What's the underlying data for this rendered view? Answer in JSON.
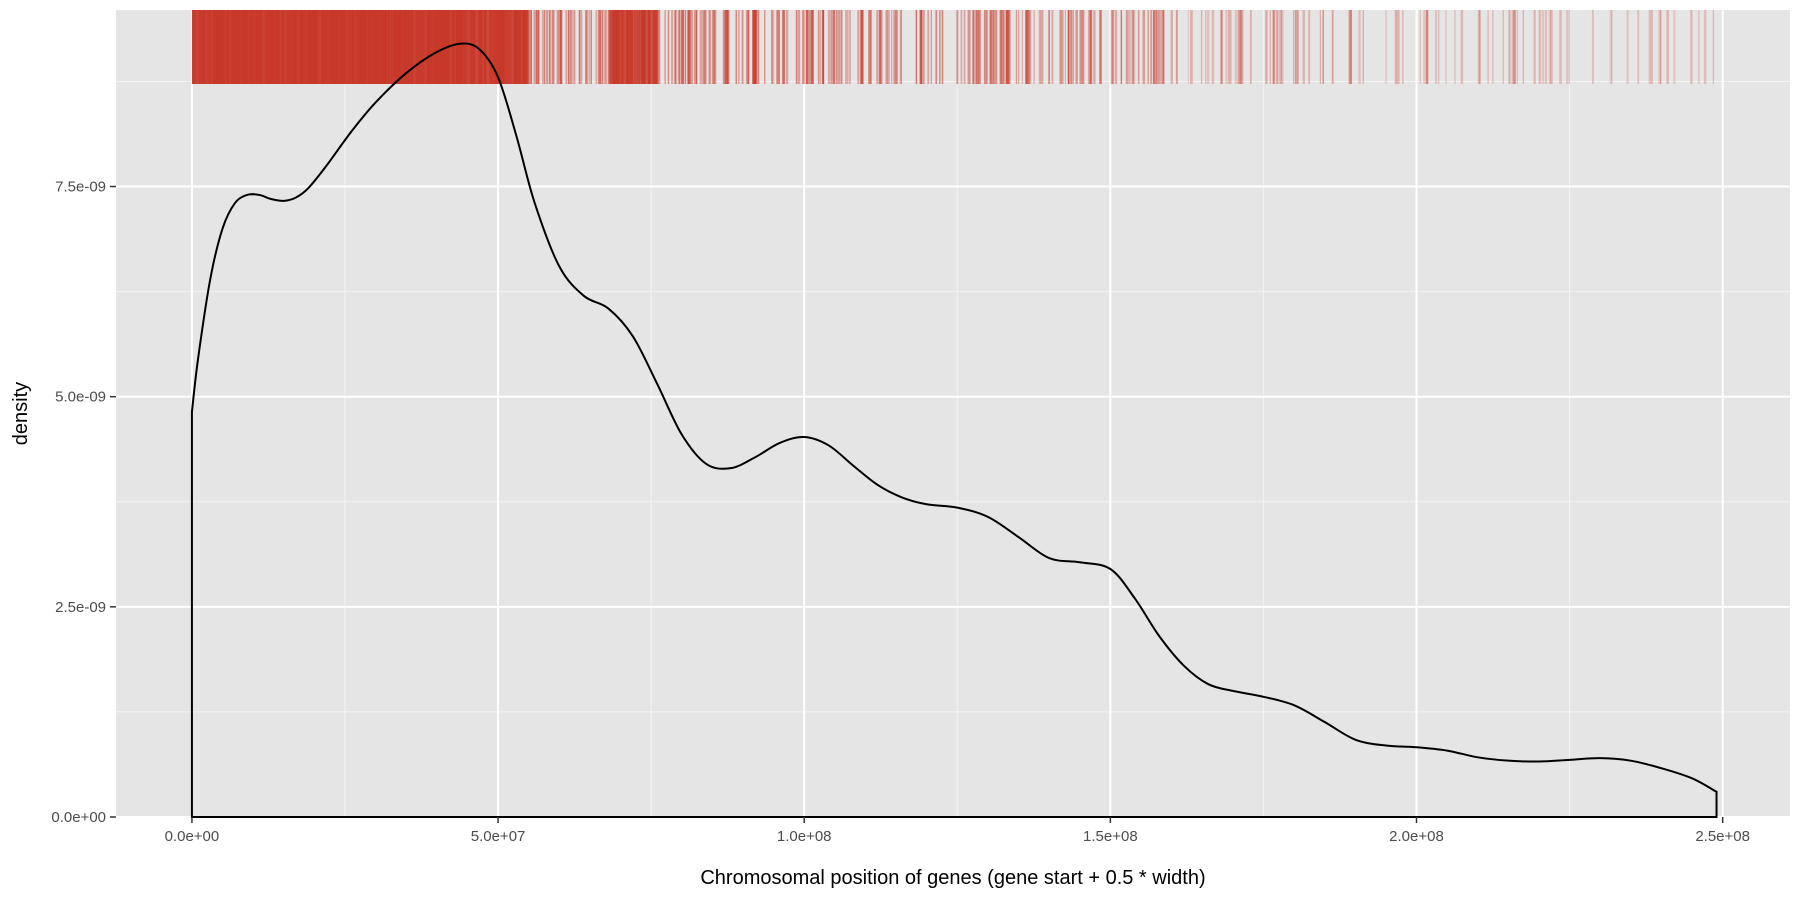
{
  "chart_data": {
    "type": "area",
    "xlabel": "Chromosomal position of genes (gene start + 0.5 * width)",
    "ylabel": "density",
    "xlim": [
      -12400000,
      261000000
    ],
    "ylim": [
      0,
      9.6e-09
    ],
    "x_ticks": [
      0,
      50000000,
      100000000,
      150000000,
      200000000,
      250000000
    ],
    "x_tick_labels": [
      "0.0e+00",
      "5.0e+07",
      "1.0e+08",
      "1.5e+08",
      "2.0e+08",
      "2.5e+08"
    ],
    "y_ticks": [
      0,
      2.5e-09,
      5e-09,
      7.5e-09
    ],
    "y_tick_labels": [
      "0.0e+00",
      "2.5e-09",
      "5.0e-09",
      "7.5e-09"
    ],
    "x_minor_ticks": [
      25000000,
      75000000,
      125000000,
      175000000,
      225000000
    ],
    "y_minor_ticks": [
      1.25e-09,
      3.75e-09,
      6.25e-09,
      8.75e-09
    ],
    "grid": true,
    "colors": {
      "panel_background": "#e5e5e5",
      "grid_line": "#ffffff",
      "density_line": "#000000",
      "rug": "#c8392a"
    },
    "series": [
      {
        "type": "density",
        "x": [
          0,
          1000000,
          3000000,
          5000000,
          7000000,
          9000000,
          11000000,
          13000000,
          15000000,
          17000000,
          19000000,
          22000000,
          26000000,
          30000000,
          35000000,
          40000000,
          44000000,
          47000000,
          50000000,
          53000000,
          56000000,
          60000000,
          64000000,
          68000000,
          72000000,
          76000000,
          80000000,
          84000000,
          88000000,
          92000000,
          96000000,
          100000000,
          104000000,
          108000000,
          112000000,
          116000000,
          120000000,
          125000000,
          130000000,
          135000000,
          140000000,
          145000000,
          150000000,
          154000000,
          158000000,
          162000000,
          166000000,
          170000000,
          175000000,
          180000000,
          185000000,
          190000000,
          195000000,
          200000000,
          205000000,
          210000000,
          215000000,
          220000000,
          225000000,
          230000000,
          235000000,
          240000000,
          245000000,
          249000000
        ],
        "y": [
          4.82e-09,
          5.45e-09,
          6.4e-09,
          7e-09,
          7.3e-09,
          7.4e-09,
          7.4e-09,
          7.35e-09,
          7.33e-09,
          7.37e-09,
          7.48e-09,
          7.75e-09,
          8.15e-09,
          8.5e-09,
          8.85e-09,
          9.1e-09,
          9.2e-09,
          9.13e-09,
          8.8e-09,
          8.1e-09,
          7.3e-09,
          6.55e-09,
          6.2e-09,
          6.05e-09,
          5.72e-09,
          5.15e-09,
          4.55e-09,
          4.2e-09,
          4.15e-09,
          4.28e-09,
          4.45e-09,
          4.52e-09,
          4.42e-09,
          4.18e-09,
          3.95e-09,
          3.8e-09,
          3.72e-09,
          3.68e-09,
          3.57e-09,
          3.33e-09,
          3.08e-09,
          3.03e-09,
          2.95e-09,
          2.6e-09,
          2.15e-09,
          1.8e-09,
          1.58e-09,
          1.5e-09,
          1.43e-09,
          1.33e-09,
          1.13e-09,
          9.2e-10,
          8.5e-10,
          8.3e-10,
          7.9e-10,
          7.1e-10,
          6.7e-10,
          6.6e-10,
          6.8e-10,
          7e-10,
          6.7e-10,
          5.8e-10,
          4.6e-10,
          3e-10
        ]
      }
    ],
    "rug": {
      "orientation": "top",
      "segments": [
        {
          "x0": 0,
          "x1": 2000000,
          "opacity": 0.95,
          "count": 6
        },
        {
          "x0": 2000000,
          "x1": 10000000,
          "opacity": 0.95,
          "count": 60
        },
        {
          "x0": 10000000,
          "x1": 20000000,
          "opacity": 0.95,
          "count": 70
        },
        {
          "x0": 20000000,
          "x1": 30000000,
          "opacity": 0.95,
          "count": 75
        },
        {
          "x0": 30000000,
          "x1": 45000000,
          "opacity": 0.95,
          "count": 100
        },
        {
          "x0": 45000000,
          "x1": 55000000,
          "opacity": 0.9,
          "count": 65
        },
        {
          "x0": 55000000,
          "x1": 60000000,
          "opacity": 0.6,
          "count": 18
        },
        {
          "x0": 60000000,
          "x1": 68000000,
          "opacity": 0.5,
          "count": 30
        },
        {
          "x0": 68000000,
          "x1": 76000000,
          "opacity": 0.85,
          "count": 40
        },
        {
          "x0": 76000000,
          "x1": 90000000,
          "opacity": 0.55,
          "count": 45
        },
        {
          "x0": 90000000,
          "x1": 105000000,
          "opacity": 0.6,
          "count": 50
        },
        {
          "x0": 105000000,
          "x1": 120000000,
          "opacity": 0.5,
          "count": 40
        },
        {
          "x0": 120000000,
          "x1": 135000000,
          "opacity": 0.55,
          "count": 40
        },
        {
          "x0": 135000000,
          "x1": 150000000,
          "opacity": 0.55,
          "count": 35
        },
        {
          "x0": 150000000,
          "x1": 160000000,
          "opacity": 0.5,
          "count": 25
        },
        {
          "x0": 160000000,
          "x1": 175000000,
          "opacity": 0.35,
          "count": 22
        },
        {
          "x0": 175000000,
          "x1": 190000000,
          "opacity": 0.4,
          "count": 20
        },
        {
          "x0": 190000000,
          "x1": 205000000,
          "opacity": 0.35,
          "count": 16
        },
        {
          "x0": 205000000,
          "x1": 220000000,
          "opacity": 0.35,
          "count": 14
        },
        {
          "x0": 220000000,
          "x1": 235000000,
          "opacity": 0.3,
          "count": 12
        },
        {
          "x0": 235000000,
          "x1": 249000000,
          "opacity": 0.3,
          "count": 12
        }
      ]
    }
  }
}
